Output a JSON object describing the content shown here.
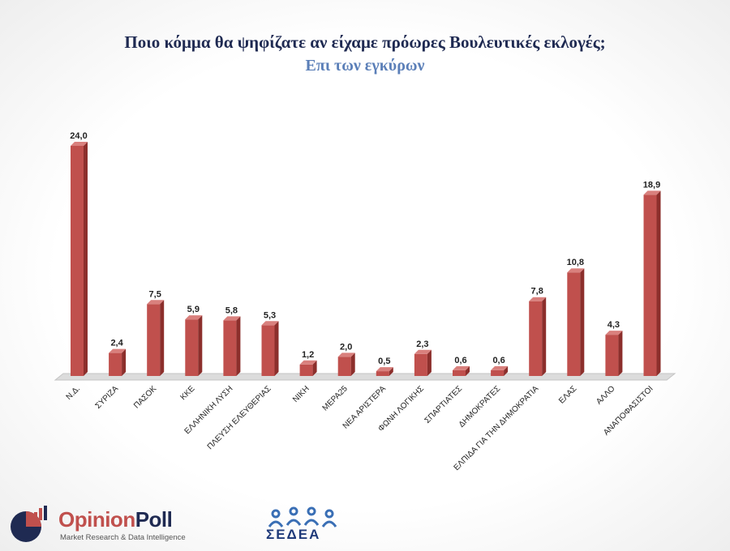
{
  "header": {
    "title": "Ποιο κόμμα θα ψηφίζατε αν είχαμε πρόωρες Βουλευτικές εκλογές;",
    "subtitle": "Επι των εγκύρων"
  },
  "chart_data": {
    "type": "bar",
    "categories": [
      "Ν.Δ.",
      "ΣΥΡΙΖΑ",
      "ΠΑΣΟΚ",
      "ΚΚΕ",
      "ΕΛΛΗΝΙΚΗ ΛΥΣΗ",
      "ΠΛΕΥΣΗ ΕΛΕΥΘΕΡΙΑΣ",
      "ΝΙΚΗ",
      "ΜΕΡΑ25",
      "ΝΕΑ ΑΡΙΣΤΕΡΑ",
      "ΦΩΝΗ ΛΟΓΙΚΗΣ",
      "ΣΠΑΡΤΙΑΤΕΣ",
      "ΔΗΜΟΚΡΑΤΕΣ",
      "ΕΛΠΙΔΑ ΓΙΑ ΤΗΝ ΔΗΜΟΚΡΑΤΙΑ",
      "ΕΛΑΣ",
      "ΑΛΛΟ",
      "ΑΝΑΠΟΦΑΣΙΣΤΟΙ"
    ],
    "values": [
      24.0,
      2.4,
      7.5,
      5.9,
      5.8,
      5.3,
      1.2,
      2.0,
      0.5,
      2.3,
      0.6,
      0.6,
      7.8,
      10.8,
      4.3,
      18.9
    ],
    "value_labels": [
      "24,0",
      "2,4",
      "7,5",
      "5,9",
      "5,8",
      "5,3",
      "1,2",
      "2,0",
      "0,5",
      "2,3",
      "0,6",
      "0,6",
      "7,8",
      "10,8",
      "4,3",
      "18,9"
    ],
    "ylim": [
      0,
      24.0
    ],
    "grid": false,
    "colors": {
      "bar": "#c0504d",
      "bar_side": "#8c2f2c",
      "bar_top": "#d9807d",
      "floor": "#dcdcdc"
    }
  },
  "logos": {
    "opinionpoll": {
      "name_part1": "Opinion",
      "name_part2": "Poll",
      "tagline": "Market Research & Data Intelligence"
    },
    "sedea": {
      "name": "ΣΕΔΕΑ"
    }
  }
}
